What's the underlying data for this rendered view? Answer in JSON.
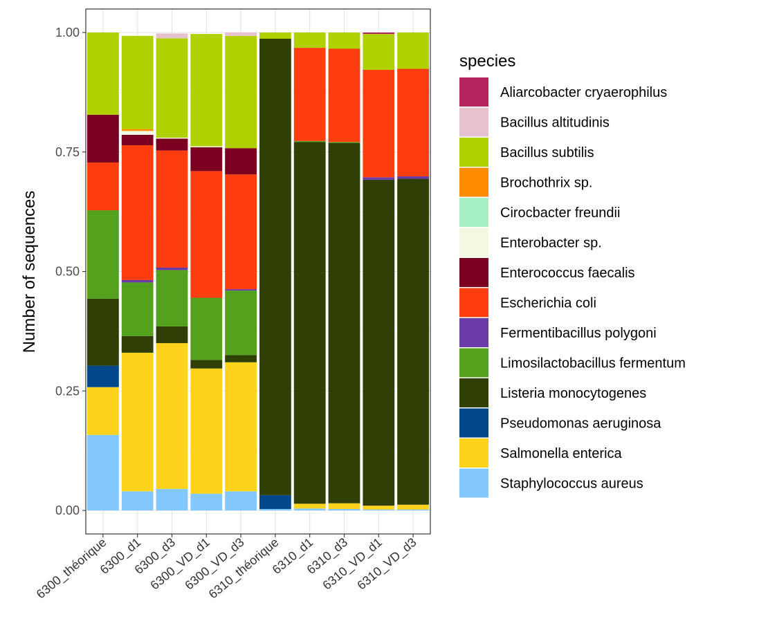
{
  "chart_data": {
    "type": "bar",
    "stacked": true,
    "title": "",
    "xlabel": "",
    "ylabel": "Number of sequences",
    "ylim": [
      0,
      1
    ],
    "yticks": [
      "0.00",
      "0.25",
      "0.50",
      "0.75",
      "1.00"
    ],
    "ytick_values": [
      0,
      0.25,
      0.5,
      0.75,
      1.0
    ],
    "grid": true,
    "legend_position": "right",
    "legend_title": "species",
    "categories": [
      "6300_théorique",
      "6300_d1",
      "6300_d3",
      "6300_VD_d1",
      "6300_VD_d3",
      "6310_théorique",
      "6310_d1",
      "6310_d3",
      "6310_VD_d1",
      "6310_VD_d3"
    ],
    "stack_order_bottom_to_top": [
      "Staphylococcus aureus",
      "Salmonella enterica",
      "Pseudomonas aeruginosa",
      "Listeria monocytogenes",
      "Limosilactobacillus fermentum",
      "Fermentibacillus polygoni",
      "Escherichia coli",
      "Enterococcus faecalis",
      "Enterobacter sp.",
      "Cirocbacter freundii",
      "Brochothrix sp.",
      "Bacillus subtilis",
      "Bacillus altitudinis",
      "Aliarcobacter cryaerophilus"
    ],
    "series": [
      {
        "name": "Aliarcobacter cryaerophilus",
        "color": "#B5245C",
        "values": [
          0,
          0,
          0,
          0,
          0,
          0,
          0,
          0,
          0.003,
          0
        ]
      },
      {
        "name": "Bacillus altitudinis",
        "color": "#E6C1D0",
        "values": [
          0,
          0,
          0.01,
          0,
          0.007,
          0,
          0,
          0,
          0,
          0
        ]
      },
      {
        "name": "Bacillus subtilis",
        "color": "#B1D000",
        "values": [
          0.172,
          0.195,
          0.208,
          0.235,
          0.235,
          0.013,
          0.032,
          0.034,
          0.075,
          0.076
        ]
      },
      {
        "name": "Brochothrix sp.",
        "color": "#FF8C00",
        "values": [
          0,
          0.004,
          0,
          0,
          0,
          0,
          0,
          0,
          0,
          0
        ]
      },
      {
        "name": "Cirocbacter freundii",
        "color": "#A8F0C6",
        "values": [
          0,
          0,
          0,
          0,
          0,
          0,
          0,
          0,
          0,
          0
        ]
      },
      {
        "name": "Enterobacter sp.",
        "color": "#F3F8E0",
        "values": [
          0,
          0.008,
          0.002,
          0.002,
          0,
          0,
          0,
          0,
          0,
          0
        ]
      },
      {
        "name": "Enterococcus faecalis",
        "color": "#7B0020",
        "values": [
          0.1,
          0.022,
          0.025,
          0.05,
          0.055,
          0,
          0,
          0,
          0,
          0
        ]
      },
      {
        "name": "Escherichia coli",
        "color": "#FF3E0F",
        "values": [
          0.1,
          0.282,
          0.245,
          0.265,
          0.24,
          0,
          0.195,
          0.195,
          0.225,
          0.225
        ]
      },
      {
        "name": "Fermentibacillus polygoni",
        "color": "#6A3BA8",
        "values": [
          0,
          0.005,
          0.005,
          0,
          0.003,
          0,
          0,
          0,
          0.005,
          0.005
        ]
      },
      {
        "name": "Limosilactobacillus fermentum",
        "color": "#53A11D",
        "values": [
          0.185,
          0.112,
          0.118,
          0.13,
          0.135,
          0,
          0.002,
          0.002,
          0,
          0
        ]
      },
      {
        "name": "Listeria monocytogenes",
        "color": "#2F3F06",
        "values": [
          0.14,
          0.035,
          0.035,
          0.018,
          0.015,
          0.955,
          0.757,
          0.754,
          0.682,
          0.682
        ]
      },
      {
        "name": "Pseudomonas aeruginosa",
        "color": "#00468B",
        "values": [
          0.045,
          0,
          0,
          0,
          0,
          0.029,
          0,
          0,
          0,
          0
        ]
      },
      {
        "name": "Salmonella enterica",
        "color": "#FFD21C",
        "values": [
          0.1,
          0.29,
          0.305,
          0.262,
          0.27,
          0,
          0.01,
          0.012,
          0.008,
          0.01
        ]
      },
      {
        "name": "Staphylococcus aureus",
        "color": "#82C8FF",
        "values": [
          0.158,
          0.04,
          0.045,
          0.035,
          0.04,
          0.003,
          0.004,
          0.003,
          0.002,
          0.002
        ]
      }
    ]
  }
}
